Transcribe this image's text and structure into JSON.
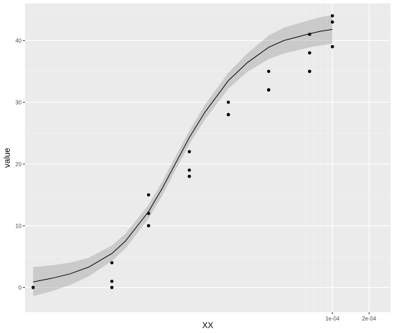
{
  "chart_data": {
    "type": "scatter",
    "title": "",
    "xlabel": "XX",
    "ylabel": "value",
    "x_scale": "log10",
    "xlim": [
      3e-07,
      0.0003
    ],
    "ylim": [
      -4,
      46
    ],
    "grid": true,
    "legend": "none",
    "x_tick_labels": [
      {
        "value": 0.0001,
        "label": "1e-04"
      },
      {
        "value": 0.0002,
        "label": "2e-04"
      }
    ],
    "x_minor_lines": [
      6e-05,
      7e-05,
      8e-05,
      9e-05,
      0.0003
    ],
    "y_ticks": [
      0,
      10,
      20,
      30,
      40
    ],
    "y_minor_ticks": [
      -5,
      5,
      15,
      25,
      35,
      45
    ],
    "series": [
      {
        "type": "points",
        "x": [
          3.5e-07,
          3.5e-07,
          1.55e-06,
          1.55e-06,
          1.55e-06,
          1.55e-06,
          3.1e-06,
          3.1e-06,
          3.1e-06,
          3.1e-06,
          6.7e-06,
          6.7e-06,
          6.7e-06,
          6.7e-06,
          1.4e-05,
          1.4e-05,
          1.4e-05,
          1.4e-05,
          3e-05,
          3e-05,
          3e-05,
          3e-05,
          6.5e-05,
          6.5e-05,
          6.5e-05,
          6.5e-05,
          0.0001,
          0.0001,
          0.0001,
          0.0001
        ],
        "y": [
          0,
          0,
          4,
          1,
          0,
          0,
          15,
          12,
          10,
          10,
          22,
          19,
          18,
          18,
          30,
          28,
          28,
          28,
          35,
          32,
          32,
          32,
          41,
          38,
          35,
          35,
          44,
          43,
          39,
          39
        ]
      },
      {
        "type": "fitted-curve",
        "x": [
          3.5e-07,
          5e-07,
          7e-07,
          1e-06,
          1.55e-06,
          2e-06,
          3.1e-06,
          4e-06,
          5e-06,
          6.7e-06,
          9e-06,
          1.4e-05,
          2e-05,
          3e-05,
          4e-05,
          6.5e-05,
          8e-05,
          0.0001
        ],
        "y": [
          0.9,
          1.5,
          2.2,
          3.3,
          5.5,
          7.5,
          12.3,
          16.0,
          19.6,
          24.3,
          28.4,
          33.5,
          36.4,
          38.9,
          40.0,
          41.1,
          41.5,
          41.8
        ],
        "band_lower": [
          -1.4,
          -0.6,
          0.4,
          1.8,
          4.3,
          6.3,
          11.2,
          14.8,
          18.5,
          23.2,
          27.2,
          32.2,
          34.9,
          37.0,
          37.9,
          38.9,
          39.2,
          39.5
        ],
        "band_upper": [
          3.3,
          3.6,
          4.0,
          4.8,
          6.8,
          8.7,
          13.4,
          17.1,
          20.7,
          25.4,
          29.6,
          34.8,
          37.9,
          40.8,
          42.1,
          43.3,
          43.8,
          44.1
        ]
      }
    ]
  }
}
